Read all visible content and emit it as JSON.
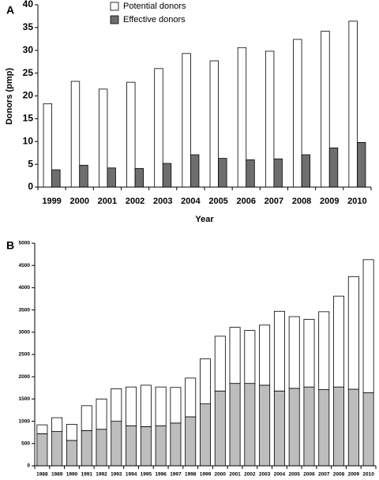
{
  "chart_data": [
    {
      "type": "bar",
      "panel_label": "A",
      "y_label": "Donors (pmp)",
      "x_label": "Year",
      "categories": [
        "1999",
        "2000",
        "2001",
        "2002",
        "2003",
        "2004",
        "2005",
        "2006",
        "2007",
        "2008",
        "2009",
        "2010"
      ],
      "series": [
        {
          "name": "Potential donors",
          "color": "#ffffff",
          "values": [
            18.3,
            23.2,
            21.5,
            23.0,
            26.0,
            29.3,
            27.7,
            30.6,
            29.8,
            32.4,
            34.2,
            36.4
          ]
        },
        {
          "name": "Effective donors",
          "color": "#6e6e6e",
          "values": [
            3.8,
            4.8,
            4.2,
            4.1,
            5.2,
            7.1,
            6.3,
            6.0,
            6.2,
            7.1,
            8.6,
            9.8
          ]
        }
      ],
      "ylim": [
        0,
        40
      ],
      "yticks": [
        0,
        5,
        10,
        15,
        20,
        25,
        30,
        35,
        40
      ],
      "legend": "top-left",
      "stacked": false
    },
    {
      "type": "bar",
      "panel_label": "B",
      "categories": [
        "1988",
        "1989",
        "1990",
        "1991",
        "1992",
        "1993",
        "1994",
        "1995",
        "1996",
        "1997",
        "1998",
        "1999",
        "2000",
        "2001",
        "2002",
        "2003",
        "2004",
        "2005",
        "2006",
        "2007",
        "2008",
        "2009",
        "2010"
      ],
      "series": [
        {
          "color": "#bdbdbd",
          "values": [
            720,
            770,
            570,
            790,
            820,
            1000,
            900,
            880,
            900,
            960,
            1100,
            1390,
            1680,
            1850,
            1850,
            1810,
            1680,
            1740,
            1770,
            1710,
            1770,
            1720,
            1640
          ]
        },
        {
          "color": "#ffffff",
          "values": [
            200,
            310,
            360,
            560,
            680,
            730,
            870,
            930,
            870,
            800,
            870,
            1010,
            1230,
            1260,
            1190,
            1350,
            1790,
            1610,
            1520,
            1750,
            2040,
            2530,
            2990
          ]
        }
      ],
      "ylim": [
        0,
        5000
      ],
      "yticks": [
        0,
        500,
        1000,
        1500,
        2000,
        2500,
        3000,
        3500,
        4000,
        4500,
        5000
      ],
      "stacked": true
    }
  ]
}
